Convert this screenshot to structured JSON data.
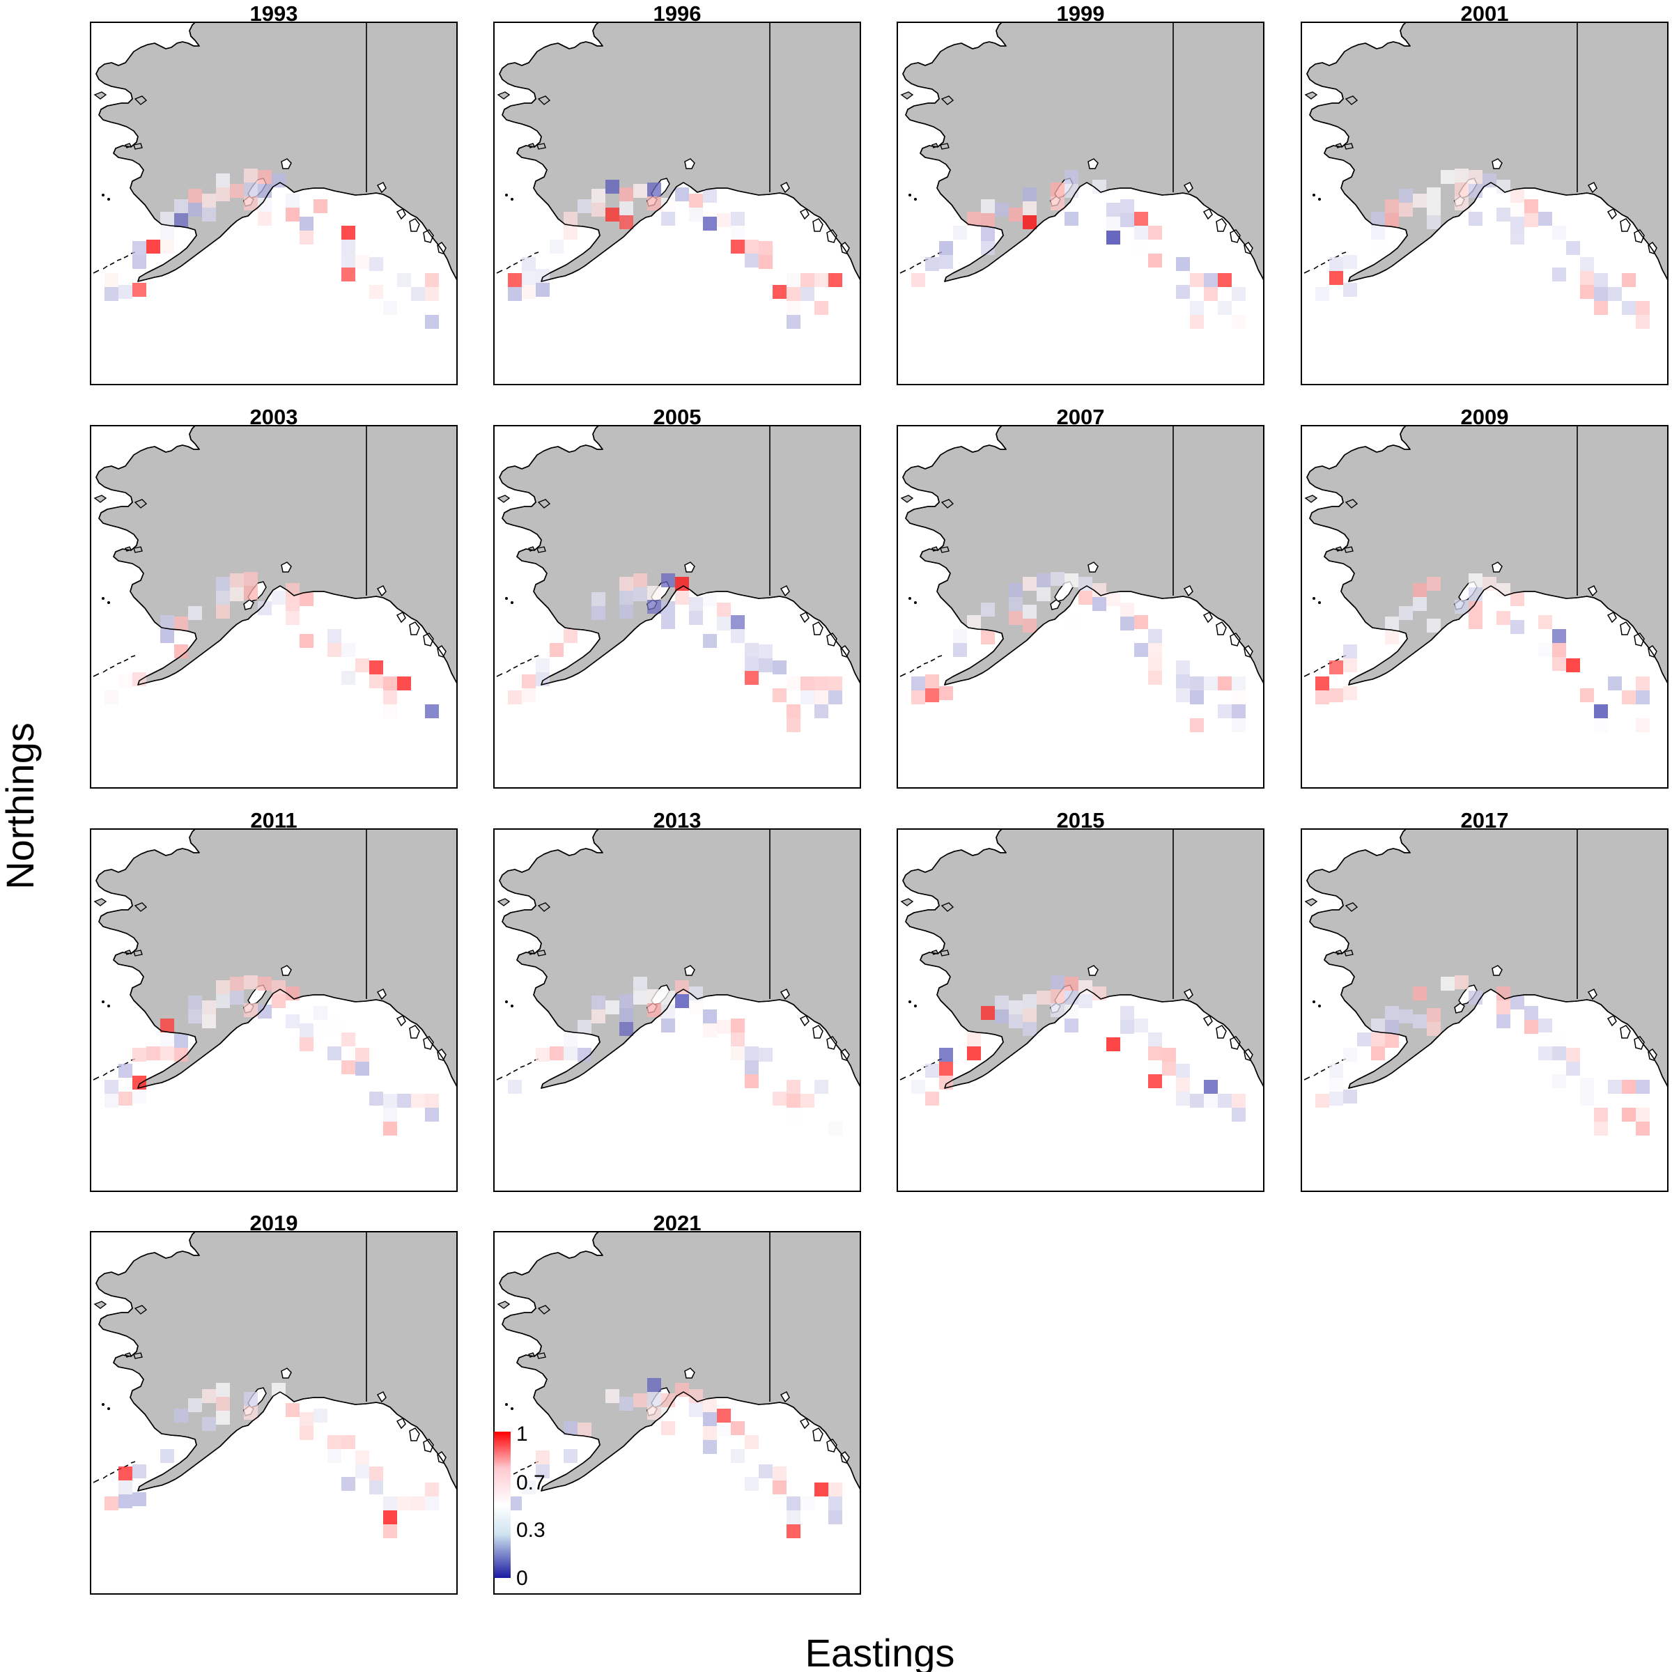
{
  "figure": {
    "xlabel": "Eastings",
    "ylabel": "Northings"
  },
  "colors": {
    "land": "#bebebe",
    "outline": "#000000",
    "low": "#1a1aa0",
    "mid": "#ffffff",
    "high": "#ff0000"
  },
  "chart_data": {
    "type": "heatmap",
    "panels": [
      {
        "year": "1993"
      },
      {
        "year": "1996"
      },
      {
        "year": "1999"
      },
      {
        "year": "2001"
      },
      {
        "year": "2003"
      },
      {
        "year": "2005"
      },
      {
        "year": "2007"
      },
      {
        "year": "2009"
      },
      {
        "year": "2011"
      },
      {
        "year": "2013"
      },
      {
        "year": "2015"
      },
      {
        "year": "2017"
      },
      {
        "year": "2019"
      },
      {
        "year": "2021"
      }
    ],
    "legend": {
      "range": [
        0,
        1
      ],
      "ticks": [
        "1",
        "0.7",
        "0.3",
        "0"
      ]
    }
  }
}
